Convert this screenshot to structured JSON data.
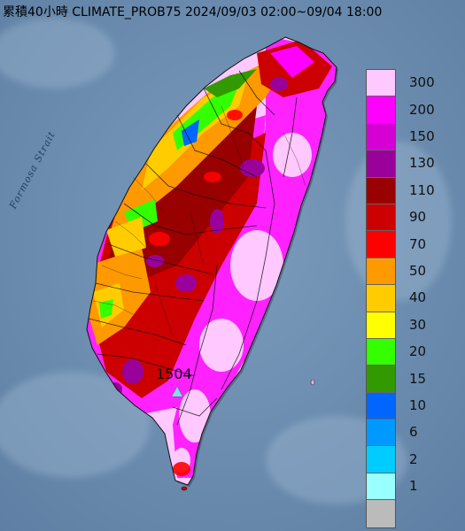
{
  "title": "累積40小時 CLIMATE_PROB75 2024/09/03 02:00~09/04 18:00",
  "strait_label": "Formosa Strait",
  "station": {
    "value": "1504"
  },
  "legend": [
    {
      "label": "300",
      "color": "#ffc8ff"
    },
    {
      "label": "200",
      "color": "#ff00ff"
    },
    {
      "label": "150",
      "color": "#d400d4"
    },
    {
      "label": "130",
      "color": "#9a009a"
    },
    {
      "label": "110",
      "color": "#990000"
    },
    {
      "label": "90",
      "color": "#cc0000"
    },
    {
      "label": "70",
      "color": "#ff0000"
    },
    {
      "label": "50",
      "color": "#ff9900"
    },
    {
      "label": "40",
      "color": "#ffcc00"
    },
    {
      "label": "30",
      "color": "#ffff00"
    },
    {
      "label": "20",
      "color": "#33ff00"
    },
    {
      "label": "15",
      "color": "#339900"
    },
    {
      "label": "10",
      "color": "#0066ff"
    },
    {
      "label": "6",
      "color": "#0099ff"
    },
    {
      "label": "2",
      "color": "#00ccff"
    },
    {
      "label": "1",
      "color": "#99ffff"
    },
    {
      "label": "",
      "color": "#bbbbbb"
    }
  ]
}
